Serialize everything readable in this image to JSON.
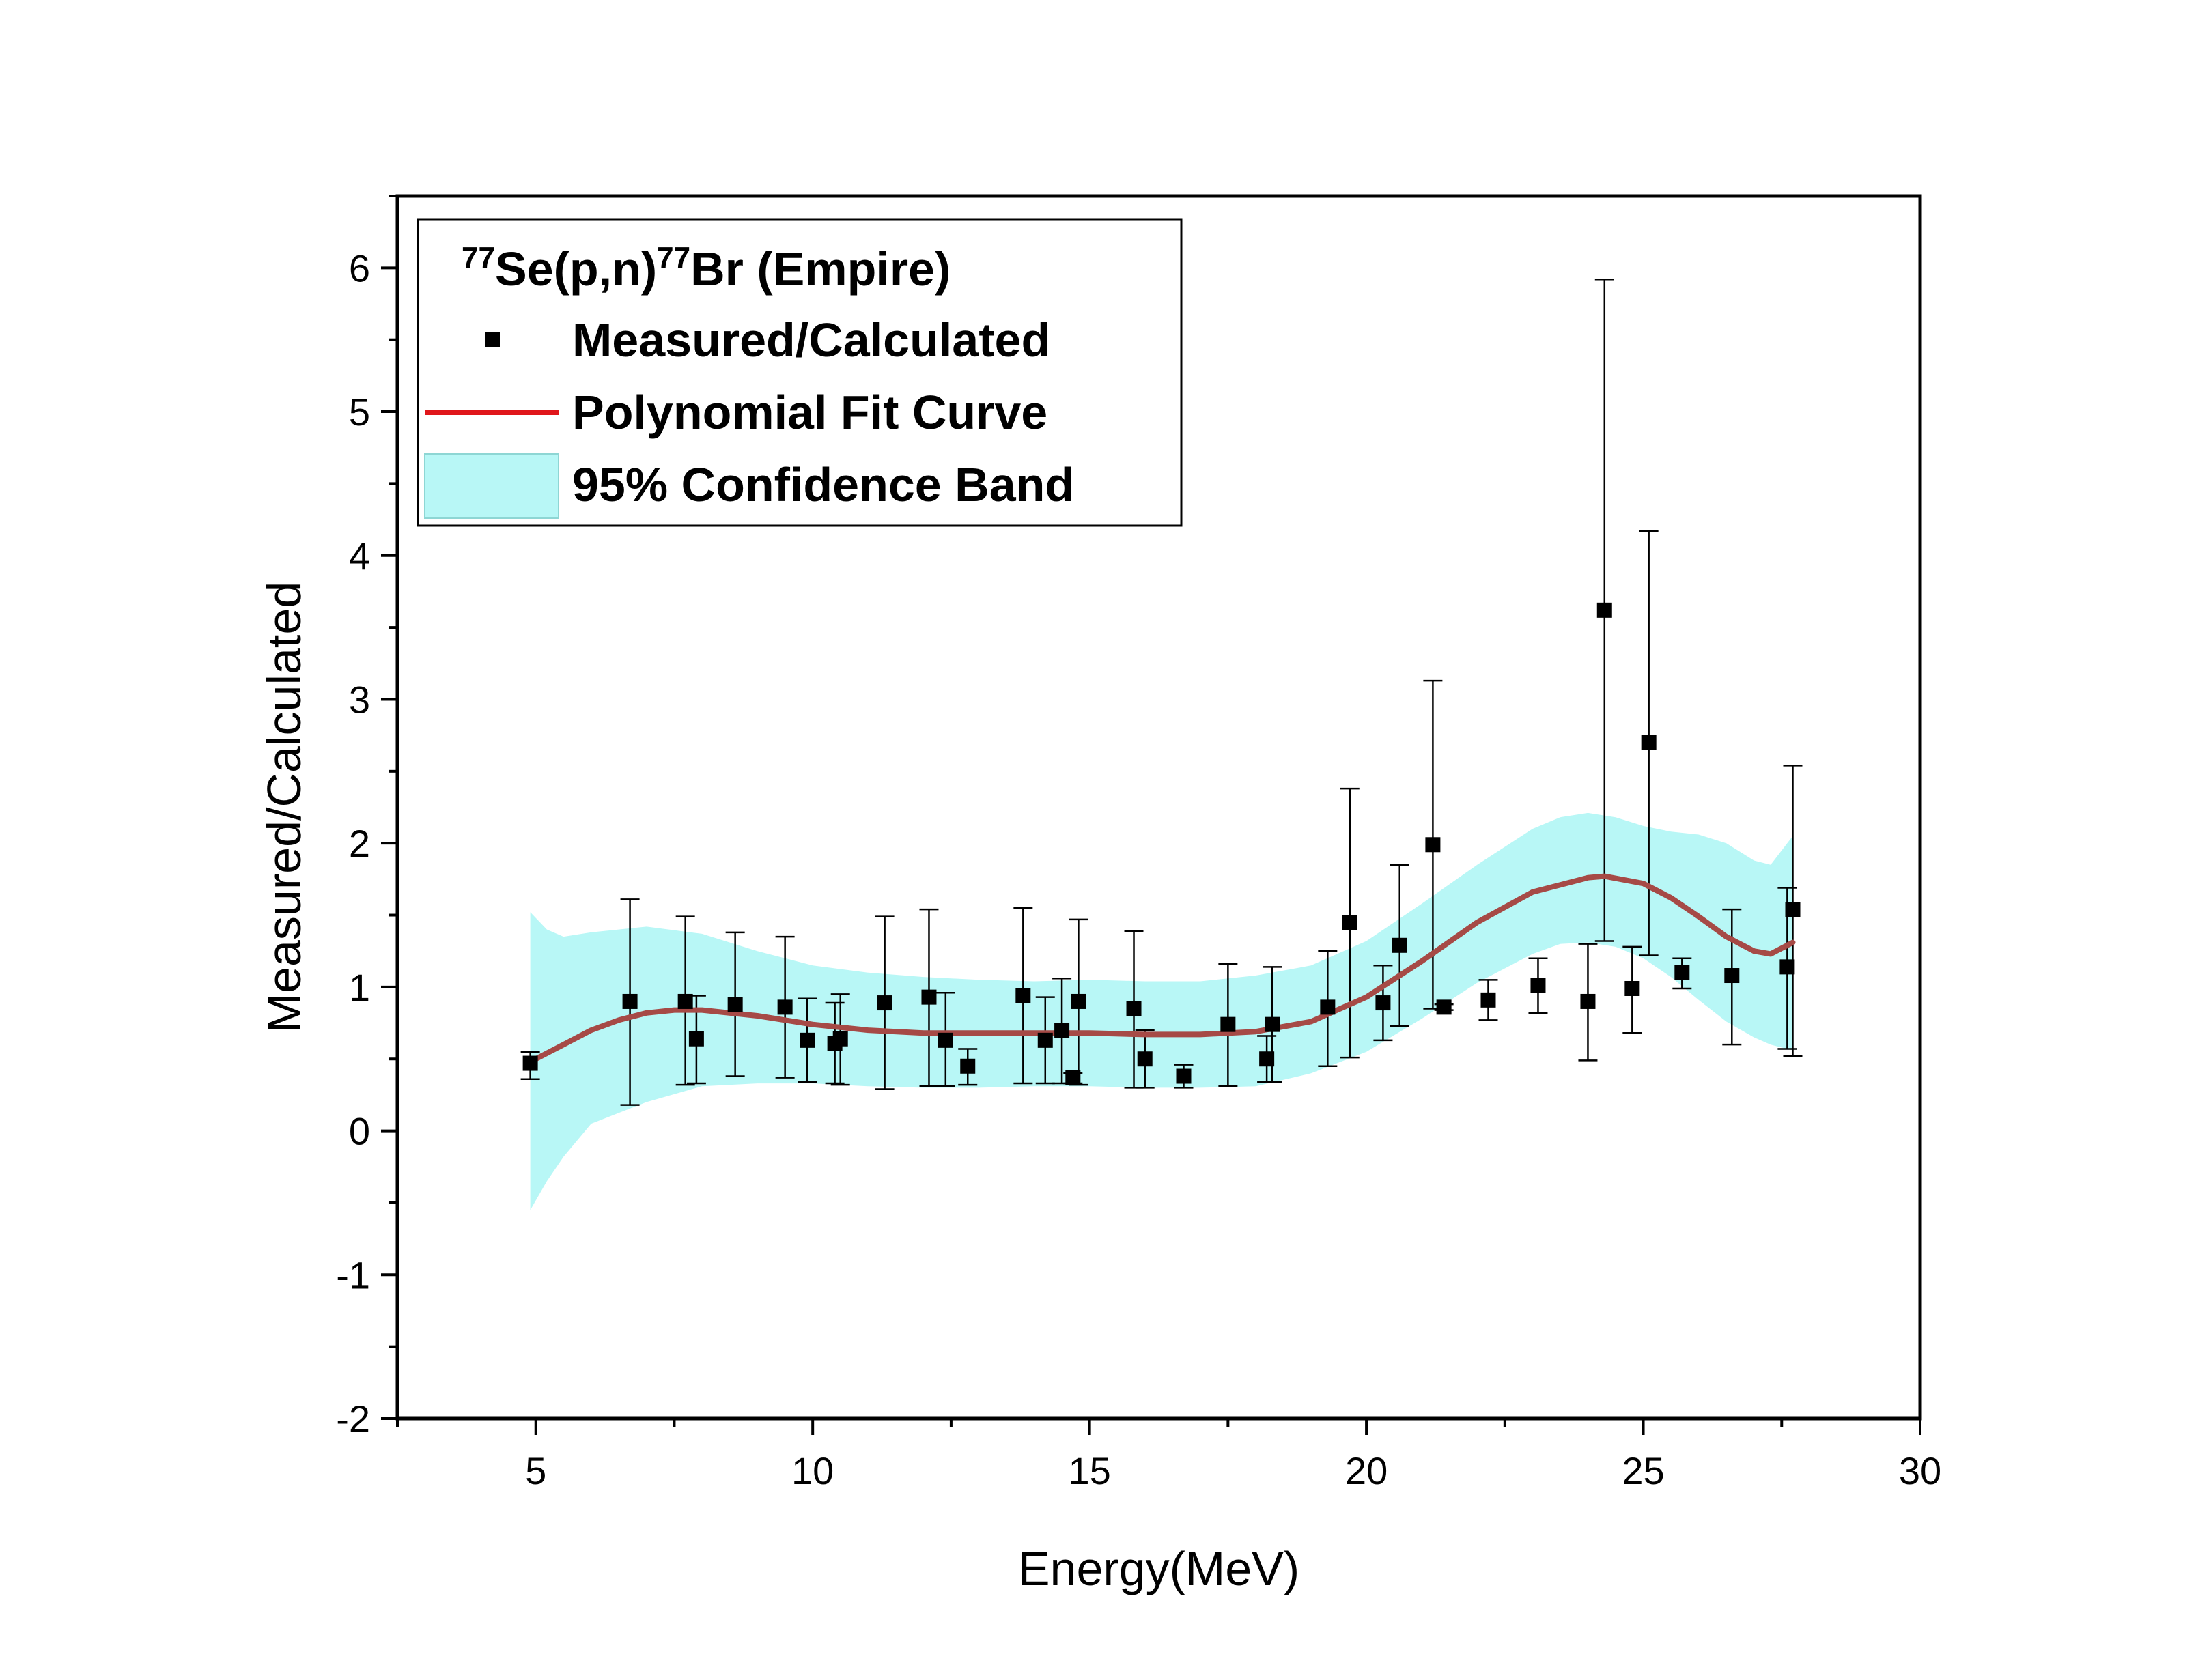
{
  "chart_data": {
    "type": "scatter",
    "xlabel": "Energy(MeV)",
    "ylabel": "Measured/Calculated",
    "xlim": [
      2.5,
      30
    ],
    "ylim": [
      -2,
      6.5
    ],
    "x_ticks": [
      "5",
      "10",
      "15",
      "20",
      "25",
      "30"
    ],
    "y_ticks": [
      "-2",
      "-1",
      "0",
      "1",
      "2",
      "3",
      "4",
      "5",
      "6"
    ],
    "legend": {
      "placement": "top-left",
      "title_parts": [
        "77",
        "Se(p,n)",
        "77",
        "Br (Empire)"
      ],
      "entries": [
        {
          "label": "Measured/Calculated"
        },
        {
          "label": "Polynomial Fit Curve"
        },
        {
          "label": "95% Confidence Band"
        }
      ]
    },
    "colors": {
      "points": "#000000",
      "fit_line": "#e0161b",
      "band": "#b8f7f6"
    },
    "series": [
      {
        "name": "Measured/Calculated",
        "kind": "points_with_errorbars",
        "x": [
          4.9,
          6.7,
          7.7,
          7.9,
          8.6,
          9.5,
          9.9,
          10.4,
          10.5,
          11.3,
          12.1,
          12.4,
          12.8,
          13.8,
          14.2,
          14.5,
          14.7,
          14.8,
          15.8,
          16.0,
          16.7,
          17.5,
          18.2,
          18.3,
          19.3,
          19.7,
          20.3,
          20.6,
          21.2,
          21.4,
          22.2,
          23.1,
          24.0,
          24.3,
          24.8,
          25.1,
          25.7,
          26.6,
          27.6,
          27.7
        ],
        "y": [
          0.47,
          0.9,
          0.9,
          0.64,
          0.88,
          0.86,
          0.63,
          0.61,
          0.64,
          0.89,
          0.93,
          0.63,
          0.45,
          0.94,
          0.63,
          0.7,
          0.37,
          0.9,
          0.85,
          0.5,
          0.38,
          0.74,
          0.5,
          0.74,
          0.86,
          1.45,
          0.89,
          1.29,
          1.99,
          0.86,
          0.91,
          1.01,
          0.9,
          3.62,
          0.99,
          2.7,
          1.1,
          1.08,
          1.14,
          1.54
        ],
        "y_low": [
          0.36,
          0.18,
          0.32,
          0.33,
          0.38,
          0.37,
          0.34,
          0.33,
          0.32,
          0.29,
          0.31,
          0.31,
          0.32,
          0.33,
          0.33,
          0.33,
          0.33,
          0.32,
          0.3,
          0.3,
          0.3,
          0.31,
          0.34,
          0.34,
          0.45,
          0.51,
          0.63,
          0.73,
          0.85,
          0.84,
          0.77,
          0.82,
          0.49,
          1.32,
          0.68,
          1.22,
          0.99,
          0.6,
          0.57,
          0.52
        ],
        "y_high": [
          0.55,
          1.61,
          1.49,
          0.94,
          1.38,
          1.35,
          0.92,
          0.89,
          0.95,
          1.49,
          1.54,
          0.96,
          0.57,
          1.55,
          0.93,
          1.06,
          0.4,
          1.47,
          1.39,
          0.7,
          0.46,
          1.16,
          0.66,
          1.14,
          1.25,
          2.38,
          1.15,
          1.85,
          3.13,
          0.88,
          1.05,
          1.2,
          1.3,
          5.92,
          1.28,
          4.17,
          1.2,
          1.54,
          1.69,
          2.54
        ]
      },
      {
        "name": "Polynomial Fit Curve",
        "kind": "line",
        "x": [
          4.9,
          5.5,
          6.0,
          6.5,
          7.0,
          7.5,
          8.0,
          9.0,
          10.0,
          11.0,
          12.0,
          13.0,
          14.0,
          15.0,
          16.0,
          16.5,
          17.0,
          18.0,
          19.0,
          20.0,
          21.0,
          22.0,
          23.0,
          24.0,
          24.3,
          25.0,
          25.5,
          26.0,
          26.5,
          27.0,
          27.3,
          27.7
        ],
        "y": [
          0.48,
          0.6,
          0.7,
          0.77,
          0.82,
          0.84,
          0.84,
          0.8,
          0.74,
          0.7,
          0.68,
          0.68,
          0.68,
          0.68,
          0.67,
          0.67,
          0.67,
          0.69,
          0.76,
          0.93,
          1.18,
          1.45,
          1.66,
          1.76,
          1.77,
          1.72,
          1.62,
          1.49,
          1.35,
          1.25,
          1.23,
          1.31
        ]
      },
      {
        "name": "95% Confidence Band",
        "kind": "band",
        "x": [
          4.9,
          5.2,
          5.5,
          6.0,
          7.0,
          8.0,
          9.0,
          10.0,
          11.0,
          12.0,
          13.0,
          14.0,
          15.0,
          16.0,
          17.0,
          18.0,
          19.0,
          20.0,
          21.0,
          22.0,
          23.0,
          23.5,
          24.0,
          24.5,
          25.0,
          25.5,
          26.0,
          26.5,
          27.0,
          27.3,
          27.7
        ],
        "lower": [
          -0.55,
          -0.35,
          -0.18,
          0.05,
          0.2,
          0.31,
          0.33,
          0.33,
          0.31,
          0.3,
          0.3,
          0.31,
          0.31,
          0.3,
          0.3,
          0.31,
          0.4,
          0.55,
          0.78,
          1.03,
          1.23,
          1.3,
          1.31,
          1.28,
          1.2,
          1.07,
          0.91,
          0.76,
          0.65,
          0.6,
          0.56
        ],
        "upper": [
          1.52,
          1.4,
          1.35,
          1.38,
          1.42,
          1.37,
          1.25,
          1.15,
          1.1,
          1.07,
          1.05,
          1.04,
          1.05,
          1.04,
          1.04,
          1.08,
          1.15,
          1.32,
          1.58,
          1.85,
          2.1,
          2.18,
          2.21,
          2.18,
          2.12,
          2.08,
          2.06,
          2.0,
          1.88,
          1.85,
          2.05
        ]
      }
    ]
  }
}
